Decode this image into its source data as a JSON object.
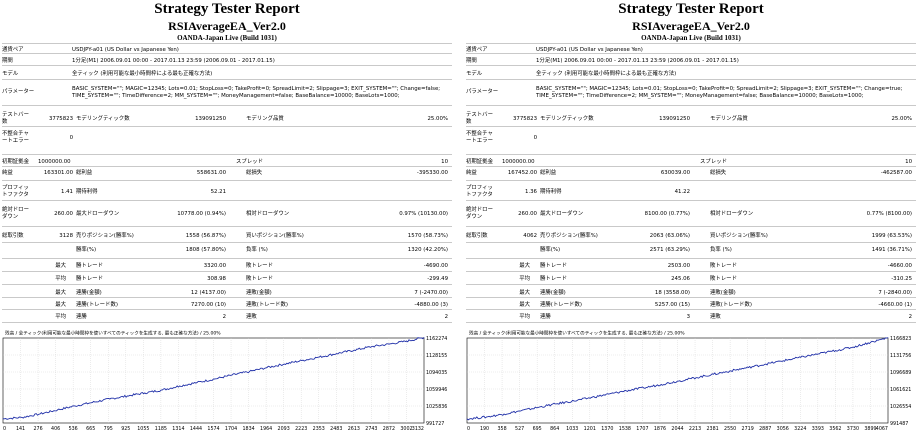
{
  "reports": [
    {
      "id": "left",
      "title": "Strategy Tester Report",
      "subtitle": "RSIAverageEA_Ver2.0",
      "build": "OANDA-Japan Live (Build 1031)",
      "currency_pair": "USDJPY-a01 (US Dollar vs Japanese Yen)",
      "period": "1分足(M1) 2006.09.01 00:00 - 2017.01.13 23:59 (2006.09.01 - 2017.01.15)",
      "model": "全ティック (利用可能な最小時間枠による最も正確な方法)",
      "parameters_1": "BASIC_SYSTEM=\"\"; MAGIC=12345; Lots=0.01; StopLoss=0; TakeProfit=0; SpreadLimit=2; Slippage=3; EXIT_SYSTEM=\"\"; Change=false;",
      "parameters_2": "TIME_SYSTEM=\"\"; TimeDifference=2; MM_SYSTEM=\"\"; MoneyManagement=false; BaseBalance=10000; BaseLots=1000;",
      "bars": "3775823",
      "ticks": "139091250",
      "quality": "25.00%",
      "mismatch_errors": "0",
      "initial_deposit": "1000000.00",
      "spread": "10",
      "net_profit": "163301.00",
      "gross_profit": "558631.00",
      "gross_loss": "-395330.00",
      "profit_factor": "1.41",
      "expected_payoff": "52.21",
      "abs_drawdown": "260.00",
      "max_drawdown": "10778.00 (0.94%)",
      "rel_drawdown": "0.97% (10130.00)",
      "total_trades": "3128",
      "short_positions": "1558 (56.87%)",
      "long_positions": "1570 (58.73%)",
      "win_trades": "1808 (57.80%)",
      "loss_trades": "1320 (42.20%)",
      "largest_win": "3320.00",
      "largest_loss": "-4690.00",
      "avg_win": "308.98",
      "avg_loss": "-299.49",
      "max_cons_wins_amount": "12 (4137.00)",
      "max_cons_losses_amount": "7 (-2470.00)",
      "max_cons_profit": "7270.00 (10)",
      "max_cons_loss": "-4880.00 (3)",
      "avg_cons_wins": "2",
      "avg_cons_losses": "2",
      "chart_header": "残高 / 全ティック(利用可能な最小時間枠を使いすべてのティックを生成する, 最も正確な方法) / 25.00%",
      "chart_y_ticks": [
        "1162274",
        "1128155",
        "1094035",
        "1059946",
        "1025836",
        "991727"
      ],
      "chart_x_ticks": [
        "0",
        "141",
        "276",
        "406",
        "536",
        "665",
        "795",
        "925",
        "1055",
        "1185",
        "1314",
        "1444",
        "1574",
        "1704",
        "1834",
        "1964",
        "2093",
        "2223",
        "2353",
        "2483",
        "2613",
        "2743",
        "2872",
        "3002",
        "3132"
      ]
    },
    {
      "id": "right",
      "title": "Strategy Tester Report",
      "subtitle": "RSIAverageEA_Ver2.0",
      "build": "OANDA-Japan Live (Build 1031)",
      "currency_pair": "USDJPY-a01 (US Dollar vs Japanese Yen)",
      "period": "1分足(M1) 2006.09.01 00:00 - 2017.01.13 23:59 (2006.09.01 - 2017.01.15)",
      "model": "全ティック (利用可能な最小時間枠による最も正確な方法)",
      "parameters_1": "BASIC_SYSTEM=\"\"; MAGIC=12345; Lots=0.01; StopLoss=0; TakeProfit=0; SpreadLimit=2; Slippage=3; EXIT_SYSTEM=\"\"; Change=true;",
      "parameters_2": "TIME_SYSTEM=\"\"; TimeDifference=2; MM_SYSTEM=\"\"; MoneyManagement=false; BaseBalance=10000; BaseLots=1000;",
      "bars": "3775823",
      "ticks": "139091250",
      "quality": "25.00%",
      "mismatch_errors": "0",
      "initial_deposit": "1000000.00",
      "spread": "10",
      "net_profit": "167452.00",
      "gross_profit": "630039.00",
      "gross_loss": "-462587.00",
      "profit_factor": "1.36",
      "expected_payoff": "41.22",
      "abs_drawdown": "260.00",
      "max_drawdown": "8100.00 (0.77%)",
      "rel_drawdown": "0.77% (8100.00)",
      "total_trades": "4062",
      "short_positions": "2063 (63.06%)",
      "long_positions": "1999 (63.53%)",
      "win_trades": "2571 (63.29%)",
      "loss_trades": "1491 (36.71%)",
      "largest_win": "2503.00",
      "largest_loss": "-4660.00",
      "avg_win": "245.06",
      "avg_loss": "-310.25",
      "max_cons_wins_amount": "18 (3558.00)",
      "max_cons_losses_amount": "7 (-2840.00)",
      "max_cons_profit": "5257.00 (15)",
      "max_cons_loss": "-4660.00 (1)",
      "avg_cons_wins": "3",
      "avg_cons_losses": "2",
      "chart_header": "残高 / 全ティック(利用可能な最小時間枠を使いすべてのティックを生成する, 最も正確な方法) / 25.00%",
      "chart_y_ticks": [
        "1166823",
        "1131756",
        "1096689",
        "1061621",
        "1026554",
        "991487"
      ],
      "chart_x_ticks": [
        "0",
        "190",
        "358",
        "527",
        "695",
        "864",
        "1033",
        "1201",
        "1370",
        "1538",
        "1707",
        "1876",
        "2044",
        "2213",
        "2381",
        "2550",
        "2719",
        "2887",
        "3056",
        "3224",
        "3393",
        "3562",
        "3730",
        "3899",
        "4067"
      ]
    }
  ],
  "labels": {
    "currency_pair": "通貨ペア",
    "period": "期間",
    "model": "モデル",
    "parameters": "パラメーター",
    "bars_1": "テストバー",
    "bars_2": "数",
    "ticks": "モデリングティック数",
    "quality": "モデリング品質",
    "mismatch_1": "不整合チャ",
    "mismatch_2": "ートエラー",
    "initial_deposit": "初期証拠金",
    "spread": "スプレッド",
    "net_profit": "純益",
    "gross_profit": "総利益",
    "gross_loss": "総損失",
    "profit_factor_1": "プロフィッ",
    "profit_factor_2": "トファクタ",
    "expected_payoff": "期待利得",
    "abs_drawdown_1": "絶対ドロー",
    "abs_drawdown_2": "ダウン",
    "max_drawdown": "最大ドローダウン",
    "rel_drawdown": "相対ドローダウン",
    "total_trades": "総取引数",
    "short_positions": "売りポジション(勝率%)",
    "long_positions": "買いポジション(勝率%)",
    "win_trades": "勝率(%)",
    "loss_trades": "負率 (%)",
    "largest": "最大",
    "average": "平均",
    "win_trade": "勝トレード",
    "loss_trade": "敗トレード",
    "max_label": "最大",
    "cons_wins_amount": "連勝(金額)",
    "cons_losses_amount": "連敗(金額)",
    "cons_profit": "連勝(トレード数)",
    "cons_loss": "連敗(トレード数)",
    "avg_cons_wins": "連勝",
    "avg_cons_losses": "連敗"
  },
  "chart_style": {
    "line_color": "#1f2fa8",
    "grid_color": "#cfcfcf",
    "axis_color": "#000000"
  },
  "chart_data": [
    {
      "type": "line",
      "title": "",
      "xlabel": "",
      "ylabel": "",
      "grid": true,
      "x": [
        0,
        141,
        276,
        406,
        536,
        665,
        795,
        925,
        1055,
        1185,
        1314,
        1444,
        1574,
        1704,
        1834,
        1964,
        2093,
        2223,
        2353,
        2483,
        2613,
        2743,
        2872,
        3002,
        3132
      ],
      "series": [
        {
          "values": [
            1000000,
            1003000,
            1010000,
            1018000,
            1026000,
            1033000,
            1040000,
            1046000,
            1052000,
            1058000,
            1066000,
            1073000,
            1080000,
            1088000,
            1095000,
            1103000,
            1110000,
            1117000,
            1124000,
            1131000,
            1138000,
            1145000,
            1150000,
            1156000,
            1163301
          ]
        }
      ],
      "ylim": [
        991727,
        1162274
      ]
    },
    {
      "type": "line",
      "title": "",
      "xlabel": "",
      "ylabel": "",
      "grid": true,
      "x": [
        0,
        190,
        358,
        527,
        695,
        864,
        1033,
        1201,
        1370,
        1538,
        1707,
        1876,
        2044,
        2213,
        2381,
        2550,
        2719,
        2887,
        3056,
        3224,
        3393,
        3562,
        3730,
        3899,
        4067
      ],
      "series": [
        {
          "values": [
            1000000,
            1004000,
            1010000,
            1017000,
            1024000,
            1031000,
            1037000,
            1044000,
            1051000,
            1058000,
            1064000,
            1071000,
            1078000,
            1085000,
            1092000,
            1099000,
            1106000,
            1113000,
            1120000,
            1127000,
            1134000,
            1141000,
            1148000,
            1158000,
            1167452
          ]
        }
      ],
      "ylim": [
        991487,
        1166823
      ]
    }
  ]
}
